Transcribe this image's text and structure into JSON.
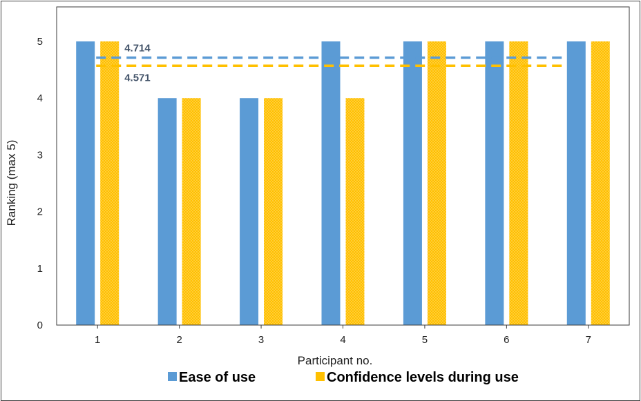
{
  "chart_data": {
    "type": "bar",
    "title": "",
    "xlabel": "Participant no.",
    "ylabel": "Ranking (max 5)",
    "categories": [
      "1",
      "2",
      "3",
      "4",
      "5",
      "6",
      "7"
    ],
    "ylim": [
      0,
      5
    ],
    "yticks": [
      "0",
      "1",
      "2",
      "3",
      "4",
      "5"
    ],
    "grid": false,
    "legend_position": "bottom",
    "series": [
      {
        "name": "Ease of use",
        "color": "#5b9bd5",
        "pattern": "solid",
        "values": [
          5,
          4,
          4,
          5,
          5,
          5,
          5
        ]
      },
      {
        "name": "Confidence levels during use",
        "color": "#ffc000",
        "pattern": "dotted",
        "values": [
          5,
          4,
          4,
          4,
          5,
          5,
          5
        ]
      }
    ],
    "annotations": [
      {
        "type": "mean-line",
        "series": "Ease of use",
        "value": 4.714,
        "label": "4.714",
        "color": "#5b9bd5",
        "style": "dashed"
      },
      {
        "type": "mean-line",
        "series": "Confidence levels during use",
        "value": 4.571,
        "label": "4.571",
        "color": "#ffc000",
        "style": "dashed"
      }
    ]
  }
}
